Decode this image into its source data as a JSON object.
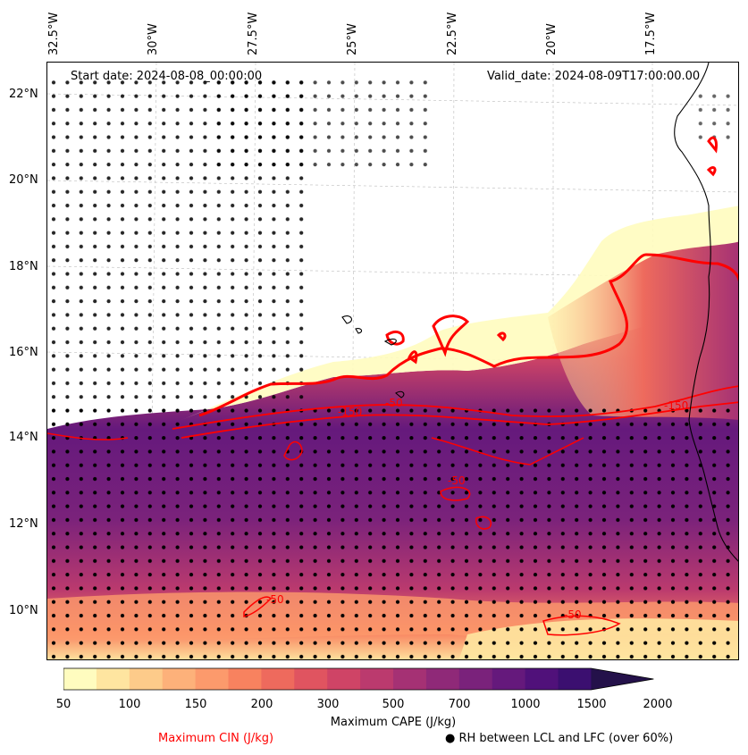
{
  "header": {
    "start_date": "Start date: 2024-08-08_00:00:00",
    "valid_date": "Valid_date: 2024-08-09T17:00:00.00"
  },
  "lon_labels": [
    "32.5°W",
    "30°W",
    "27.5°W",
    "25°W",
    "22.5°W",
    "20°W",
    "17.5°W"
  ],
  "lat_labels": [
    "22°N",
    "20°N",
    "18°N",
    "16°N",
    "14°N",
    "12°N",
    "10°N"
  ],
  "colorbar": {
    "label": "Maximum CAPE (J/kg)",
    "ticks": [
      "50",
      "100",
      "150",
      "200",
      "300",
      "500",
      "700",
      "1000",
      "1500",
      "2000"
    ],
    "colors": [
      "#fffcbf",
      "#fee5a0",
      "#fdcb8a",
      "#fdb17a",
      "#fc9a6c",
      "#f8825f",
      "#ee6a5d",
      "#e05460",
      "#cf4466",
      "#bb3a6e",
      "#a53174",
      "#8f2978",
      "#7a227b",
      "#65197c",
      "#50117a",
      "#3b0f70",
      "#24114a"
    ]
  },
  "legend": {
    "cin": "Maximum CIN (J/kg)",
    "rh": "● RH between LCL and LFC (over 60%)"
  },
  "contour_labels": [
    "-50",
    "-150",
    "-50",
    "-50",
    "-150",
    "-50"
  ],
  "colors": {
    "cin_contour": "#ff0000",
    "coast": "#000000",
    "grid": "#bbbbbb"
  }
}
